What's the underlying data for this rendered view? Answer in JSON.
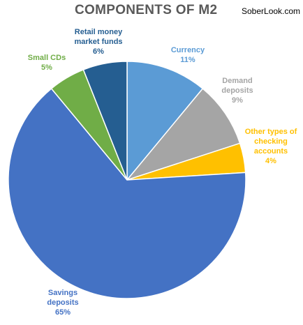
{
  "chart_data": {
    "type": "pie",
    "title": "COMPONENTS OF M2",
    "watermark": "SoberLook.com",
    "slices": [
      {
        "lines": [
          "Currency",
          "11%"
        ],
        "value": 11,
        "color": "#5B9BD5",
        "label_color": "#5B9BD5"
      },
      {
        "lines": [
          "Demand",
          "deposits",
          "9%"
        ],
        "value": 9,
        "color": "#A5A5A5",
        "label_color": "#A5A5A5"
      },
      {
        "lines": [
          "Other types of",
          "checking",
          "accounts",
          "4%"
        ],
        "value": 4,
        "color": "#FFC000",
        "label_color": "#FFC000"
      },
      {
        "lines": [
          "Savings",
          "deposits",
          "65%"
        ],
        "value": 65,
        "color": "#4472C4",
        "label_color": "#4472C4"
      },
      {
        "lines": [
          "Small CDs",
          "5%"
        ],
        "value": 5,
        "color": "#70AD47",
        "label_color": "#70AD47"
      },
      {
        "lines": [
          "Retail money",
          "market funds",
          "6%"
        ],
        "value": 6,
        "color": "#255E91",
        "label_color": "#255E91"
      }
    ]
  }
}
